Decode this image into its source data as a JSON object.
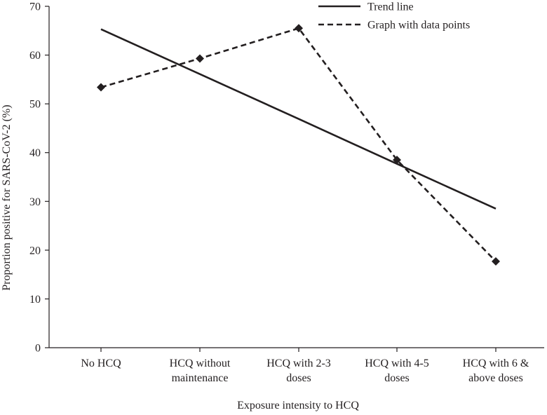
{
  "chart_data": {
    "type": "line",
    "title": "",
    "xlabel": "Exposure intensity to HCQ",
    "ylabel": "Proportion positive for SARS-CoV-2 (%)",
    "categories": [
      [
        "No HCQ"
      ],
      [
        "HCQ without",
        "maintenance"
      ],
      [
        "HCQ with 2-3",
        "doses"
      ],
      [
        "HCQ with 4-5",
        "doses"
      ],
      [
        "HCQ with 6 &",
        "above doses"
      ]
    ],
    "ylim": [
      0,
      70
    ],
    "yticks": [
      0,
      10,
      20,
      30,
      40,
      50,
      60,
      70
    ],
    "grid": false,
    "legend_position": "top-right",
    "series": [
      {
        "name": "Trend line",
        "style": "solid",
        "markers": false,
        "values": [
          65.3,
          56.1,
          46.9,
          37.7,
          28.5
        ]
      },
      {
        "name": "Graph with data points",
        "style": "dashed",
        "markers": true,
        "values": [
          53.4,
          59.3,
          65.5,
          38.5,
          17.7
        ]
      }
    ],
    "colors": {
      "line": "#231f20",
      "axis": "#231f20"
    }
  }
}
